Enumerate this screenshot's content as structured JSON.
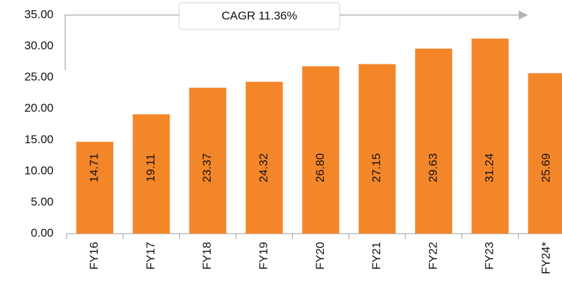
{
  "chart_data": {
    "type": "bar",
    "categories": [
      "FY16",
      "FY17",
      "FY18",
      "FY19",
      "FY20",
      "FY21",
      "FY22",
      "FY23",
      "FY24*"
    ],
    "values": [
      14.71,
      19.11,
      23.37,
      24.32,
      26.8,
      27.15,
      29.63,
      31.24,
      25.69
    ],
    "value_labels": [
      "14.71",
      "19.11",
      "23.37",
      "24.32",
      "26.80",
      "27.15",
      "29.63",
      "31.24",
      "25.69"
    ],
    "color": "#f4862a",
    "ylim": [
      0,
      35
    ],
    "yticks": [
      {
        "value": 0,
        "label": "0.00"
      },
      {
        "value": 5,
        "label": "5.00"
      },
      {
        "value": 10,
        "label": "10.00"
      },
      {
        "value": 15,
        "label": "15.00"
      },
      {
        "value": 20,
        "label": "20.00"
      },
      {
        "value": 25,
        "label": "25.00"
      },
      {
        "value": 30,
        "label": "30.00"
      },
      {
        "value": 35,
        "label": "35.00"
      }
    ],
    "annotation": "CAGR 11.36%",
    "grid": false
  }
}
